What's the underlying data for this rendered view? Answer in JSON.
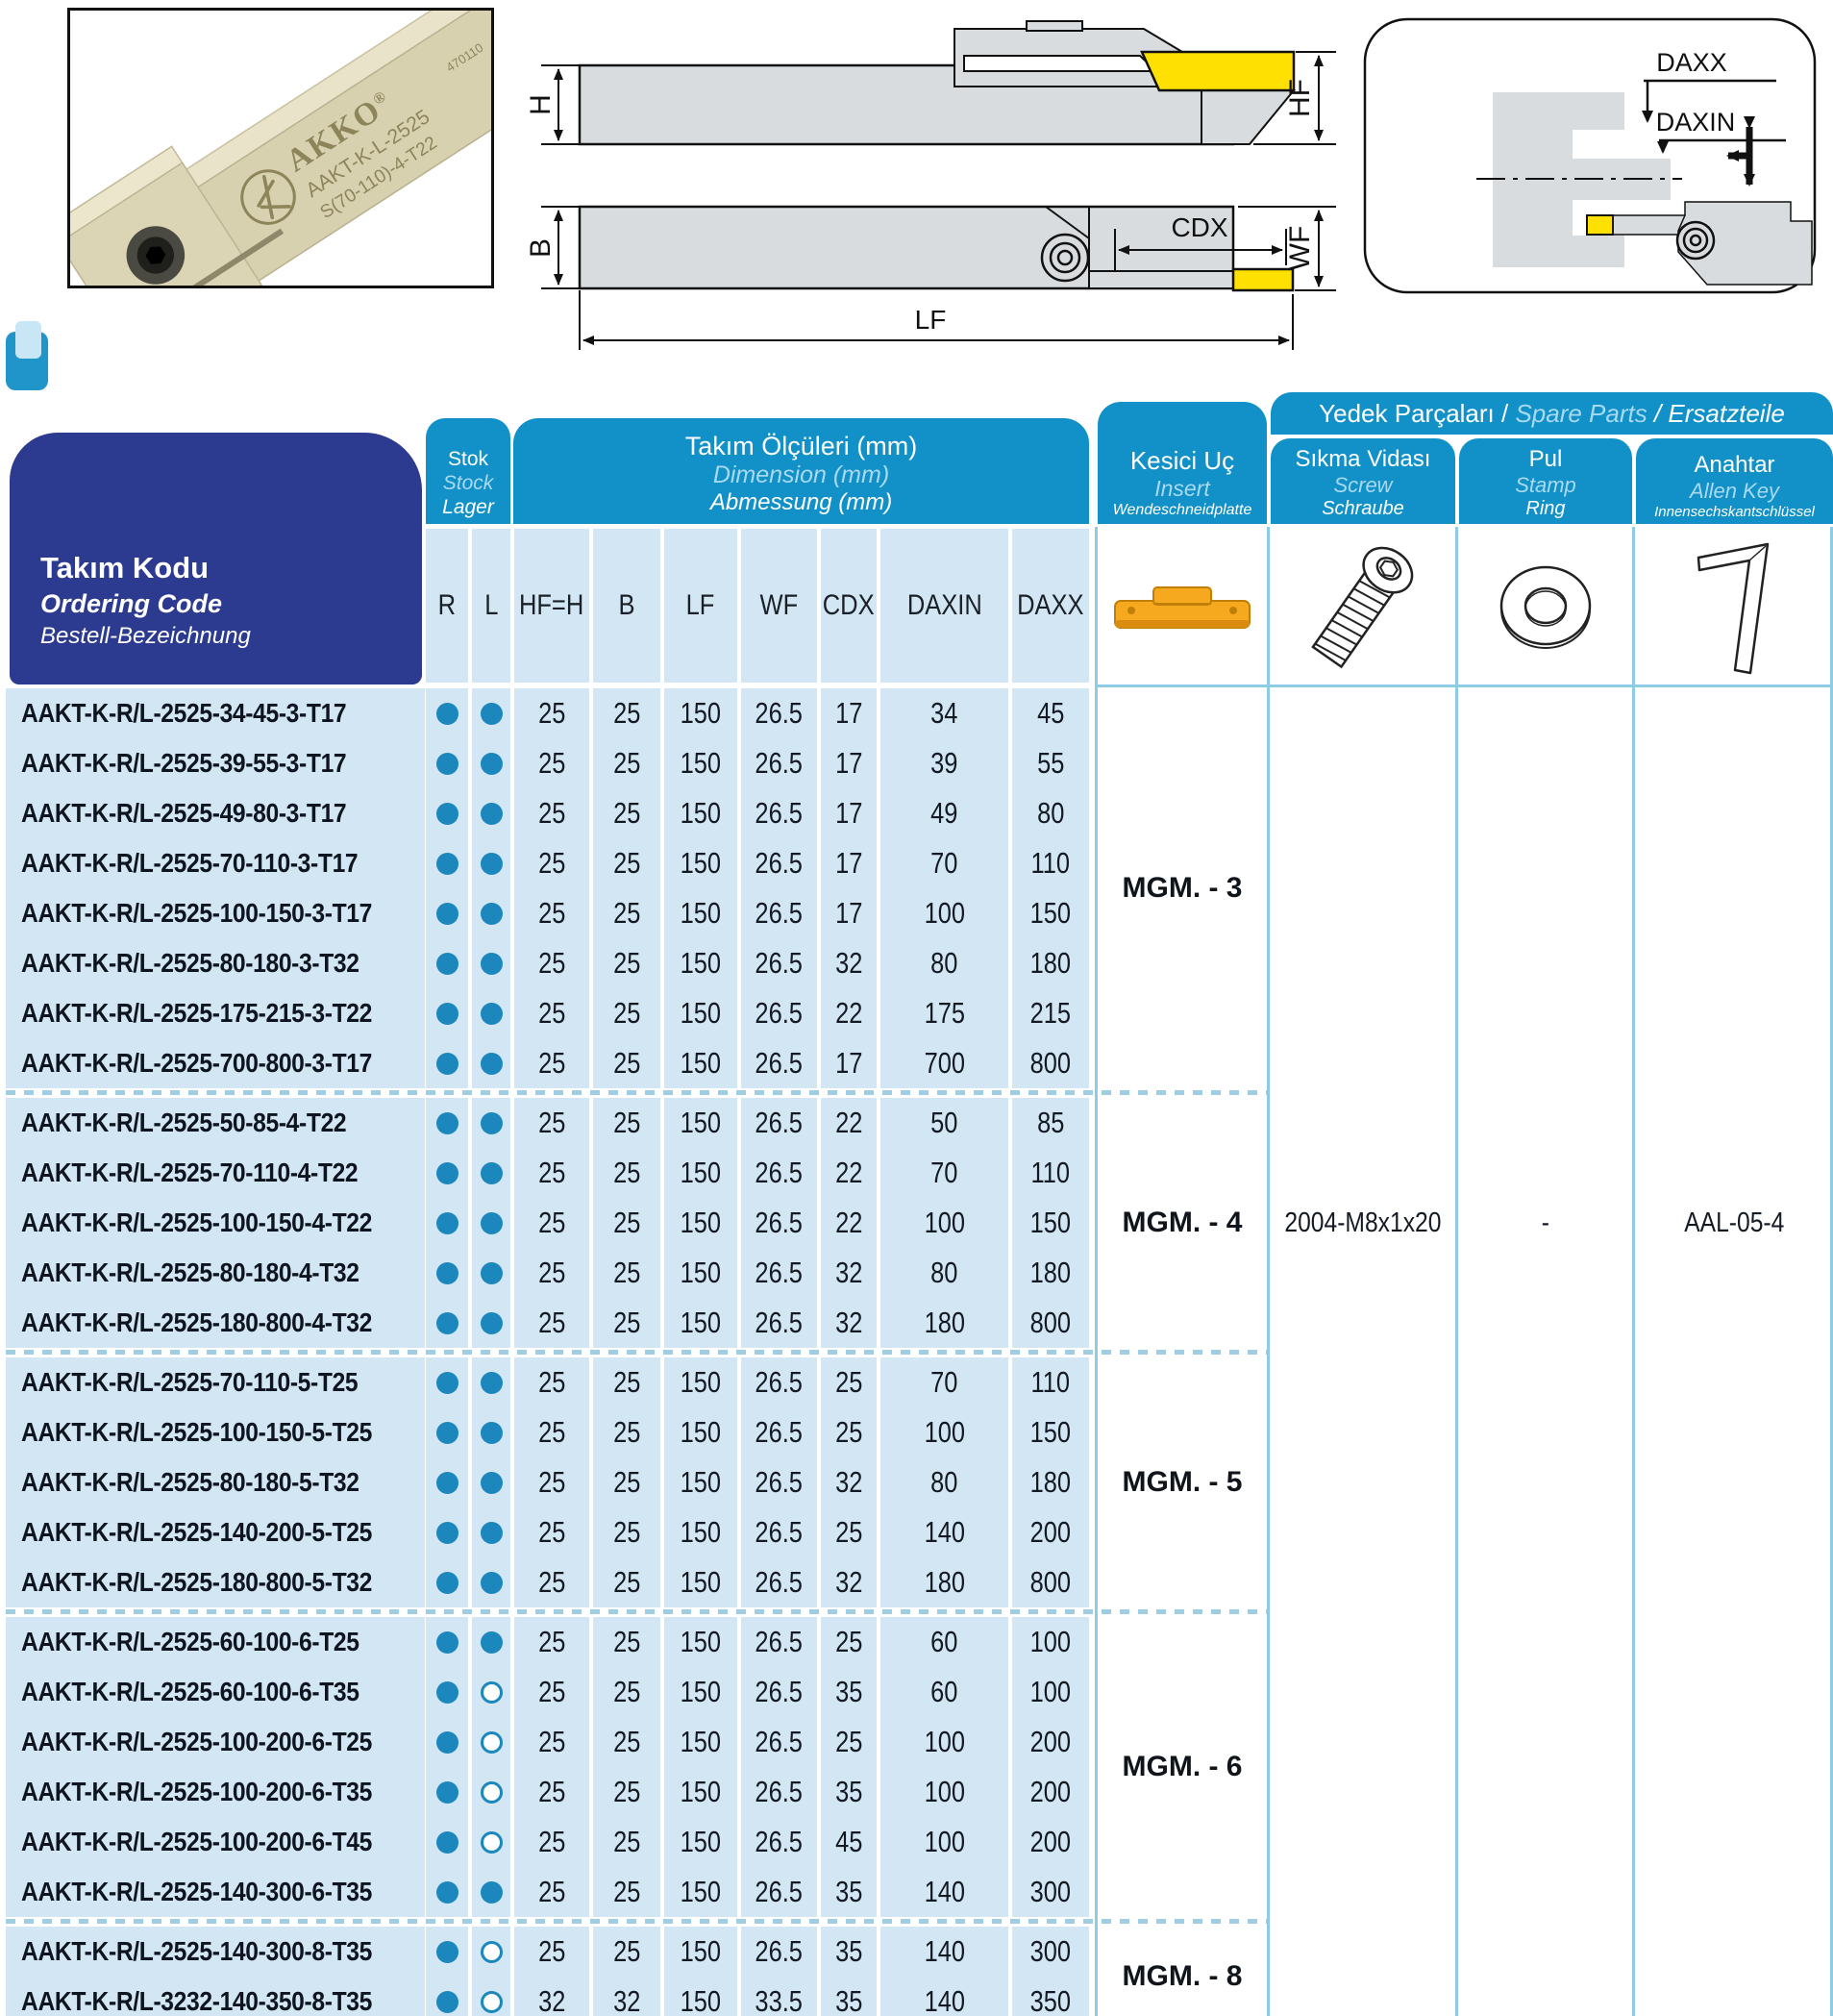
{
  "photo": {
    "brand": "AKKO",
    "reg": "®",
    "marking1": "AAKT-K-L-2525",
    "marking2": "S(70-110)-4-T22",
    "marking3": "470110"
  },
  "drawings": {
    "h": "H",
    "b": "B",
    "hf": "HF",
    "wf": "WF",
    "cdx": "CDX",
    "lf": "LF",
    "daxx": "DAXX",
    "daxin": "DAXIN"
  },
  "header": {
    "code": {
      "tr": "Takım Kodu",
      "en": "Ordering Code",
      "de": "Bestell-Bezeichnung"
    },
    "stock": {
      "tr": "Stok",
      "en": "Stock",
      "de": "Lager"
    },
    "dims": {
      "tr": "Takım Ölçüleri (mm)",
      "en": "Dimension (mm)",
      "de": "Abmessung (mm)"
    },
    "insert": {
      "tr": "Kesici Uç",
      "en": "Insert",
      "de": "Wendeschneidplatte"
    },
    "spare": {
      "tr": "Yedek Parçaları /",
      "en": "Spare Parts",
      "de": "/ Ersatzteile"
    },
    "screw": {
      "tr": "Sıkma Vidası",
      "en": "Screw",
      "de": "Schraube"
    },
    "ring": {
      "tr": "Pul",
      "en": "Stamp",
      "de": "Ring"
    },
    "key": {
      "tr": "Anahtar",
      "en": "Allen Key",
      "de": "Innensechskantschlüssel"
    },
    "columns": [
      "R",
      "L",
      "HF=H",
      "B",
      "LF",
      "WF",
      "CDX",
      "DAXIN",
      "DAXX"
    ]
  },
  "table": {
    "groups": [
      {
        "insert": "MGM. - 3",
        "rows": [
          {
            "code": "AAKT-K-R/L-2525-34-45-3-T17",
            "r": "filled",
            "l": "filled",
            "dims": [
              "25",
              "25",
              "150",
              "26.5",
              "17",
              "34",
              "45"
            ]
          },
          {
            "code": "AAKT-K-R/L-2525-39-55-3-T17",
            "r": "filled",
            "l": "filled",
            "dims": [
              "25",
              "25",
              "150",
              "26.5",
              "17",
              "39",
              "55"
            ]
          },
          {
            "code": "AAKT-K-R/L-2525-49-80-3-T17",
            "r": "filled",
            "l": "filled",
            "dims": [
              "25",
              "25",
              "150",
              "26.5",
              "17",
              "49",
              "80"
            ]
          },
          {
            "code": "AAKT-K-R/L-2525-70-110-3-T17",
            "r": "filled",
            "l": "filled",
            "dims": [
              "25",
              "25",
              "150",
              "26.5",
              "17",
              "70",
              "110"
            ]
          },
          {
            "code": "AAKT-K-R/L-2525-100-150-3-T17",
            "r": "filled",
            "l": "filled",
            "dims": [
              "25",
              "25",
              "150",
              "26.5",
              "17",
              "100",
              "150"
            ]
          },
          {
            "code": "AAKT-K-R/L-2525-80-180-3-T32",
            "r": "filled",
            "l": "filled",
            "dims": [
              "25",
              "25",
              "150",
              "26.5",
              "32",
              "80",
              "180"
            ]
          },
          {
            "code": "AAKT-K-R/L-2525-175-215-3-T22",
            "r": "filled",
            "l": "filled",
            "dims": [
              "25",
              "25",
              "150",
              "26.5",
              "22",
              "175",
              "215"
            ]
          },
          {
            "code": "AAKT-K-R/L-2525-700-800-3-T17",
            "r": "filled",
            "l": "filled",
            "dims": [
              "25",
              "25",
              "150",
              "26.5",
              "17",
              "700",
              "800"
            ]
          }
        ]
      },
      {
        "insert": "MGM. - 4",
        "rows": [
          {
            "code": "AAKT-K-R/L-2525-50-85-4-T22",
            "r": "filled",
            "l": "filled",
            "dims": [
              "25",
              "25",
              "150",
              "26.5",
              "22",
              "50",
              "85"
            ]
          },
          {
            "code": "AAKT-K-R/L-2525-70-110-4-T22",
            "r": "filled",
            "l": "filled",
            "dims": [
              "25",
              "25",
              "150",
              "26.5",
              "22",
              "70",
              "110"
            ]
          },
          {
            "code": "AAKT-K-R/L-2525-100-150-4-T22",
            "r": "filled",
            "l": "filled",
            "dims": [
              "25",
              "25",
              "150",
              "26.5",
              "22",
              "100",
              "150"
            ]
          },
          {
            "code": "AAKT-K-R/L-2525-80-180-4-T32",
            "r": "filled",
            "l": "filled",
            "dims": [
              "25",
              "25",
              "150",
              "26.5",
              "32",
              "80",
              "180"
            ]
          },
          {
            "code": "AAKT-K-R/L-2525-180-800-4-T32",
            "r": "filled",
            "l": "filled",
            "dims": [
              "25",
              "25",
              "150",
              "26.5",
              "32",
              "180",
              "800"
            ]
          }
        ]
      },
      {
        "insert": "MGM. - 5",
        "rows": [
          {
            "code": "AAKT-K-R/L-2525-70-110-5-T25",
            "r": "filled",
            "l": "filled",
            "dims": [
              "25",
              "25",
              "150",
              "26.5",
              "25",
              "70",
              "110"
            ]
          },
          {
            "code": "AAKT-K-R/L-2525-100-150-5-T25",
            "r": "filled",
            "l": "filled",
            "dims": [
              "25",
              "25",
              "150",
              "26.5",
              "25",
              "100",
              "150"
            ]
          },
          {
            "code": "AAKT-K-R/L-2525-80-180-5-T32",
            "r": "filled",
            "l": "filled",
            "dims": [
              "25",
              "25",
              "150",
              "26.5",
              "32",
              "80",
              "180"
            ]
          },
          {
            "code": "AAKT-K-R/L-2525-140-200-5-T25",
            "r": "filled",
            "l": "filled",
            "dims": [
              "25",
              "25",
              "150",
              "26.5",
              "25",
              "140",
              "200"
            ]
          },
          {
            "code": "AAKT-K-R/L-2525-180-800-5-T32",
            "r": "filled",
            "l": "filled",
            "dims": [
              "25",
              "25",
              "150",
              "26.5",
              "32",
              "180",
              "800"
            ]
          }
        ]
      },
      {
        "insert": "MGM. - 6",
        "rows": [
          {
            "code": "AAKT-K-R/L-2525-60-100-6-T25",
            "r": "filled",
            "l": "filled",
            "dims": [
              "25",
              "25",
              "150",
              "26.5",
              "25",
              "60",
              "100"
            ]
          },
          {
            "code": "AAKT-K-R/L-2525-60-100-6-T35",
            "r": "filled",
            "l": "open",
            "dims": [
              "25",
              "25",
              "150",
              "26.5",
              "35",
              "60",
              "100"
            ]
          },
          {
            "code": "AAKT-K-R/L-2525-100-200-6-T25",
            "r": "filled",
            "l": "open",
            "dims": [
              "25",
              "25",
              "150",
              "26.5",
              "25",
              "100",
              "200"
            ]
          },
          {
            "code": "AAKT-K-R/L-2525-100-200-6-T35",
            "r": "filled",
            "l": "open",
            "dims": [
              "25",
              "25",
              "150",
              "26.5",
              "35",
              "100",
              "200"
            ]
          },
          {
            "code": "AAKT-K-R/L-2525-100-200-6-T45",
            "r": "filled",
            "l": "open",
            "dims": [
              "25",
              "25",
              "150",
              "26.5",
              "45",
              "100",
              "200"
            ]
          },
          {
            "code": "AAKT-K-R/L-2525-140-300-6-T35",
            "r": "filled",
            "l": "filled",
            "dims": [
              "25",
              "25",
              "150",
              "26.5",
              "35",
              "140",
              "300"
            ]
          }
        ]
      },
      {
        "insert": "MGM. - 8",
        "rows": [
          {
            "code": "AAKT-K-R/L-2525-140-300-8-T35",
            "r": "filled",
            "l": "open",
            "dims": [
              "25",
              "25",
              "150",
              "26.5",
              "35",
              "140",
              "300"
            ]
          },
          {
            "code": "AAKT-K-R/L-3232-140-350-8-T35",
            "r": "filled",
            "l": "open",
            "dims": [
              "32",
              "32",
              "150",
              "33.5",
              "35",
              "140",
              "350"
            ]
          }
        ]
      }
    ],
    "spare_parts": {
      "screw": "2004-M8x1x20",
      "ring": "-",
      "key": "AAL-05-4"
    }
  },
  "colors": {
    "dark_blue": "#2c3a90",
    "cyan": "#1191c7",
    "light_cell": "#d2e6f3",
    "light_header_text": "#a9d9ef",
    "stock_dot": "#1b87bd",
    "dash_separator": "#9fcde2",
    "insert_orange": "#f6a81e",
    "insert_yellow": "#ffe003",
    "tool_beige": "#d8d1b0",
    "drawing_grey": "#d8dcde"
  }
}
